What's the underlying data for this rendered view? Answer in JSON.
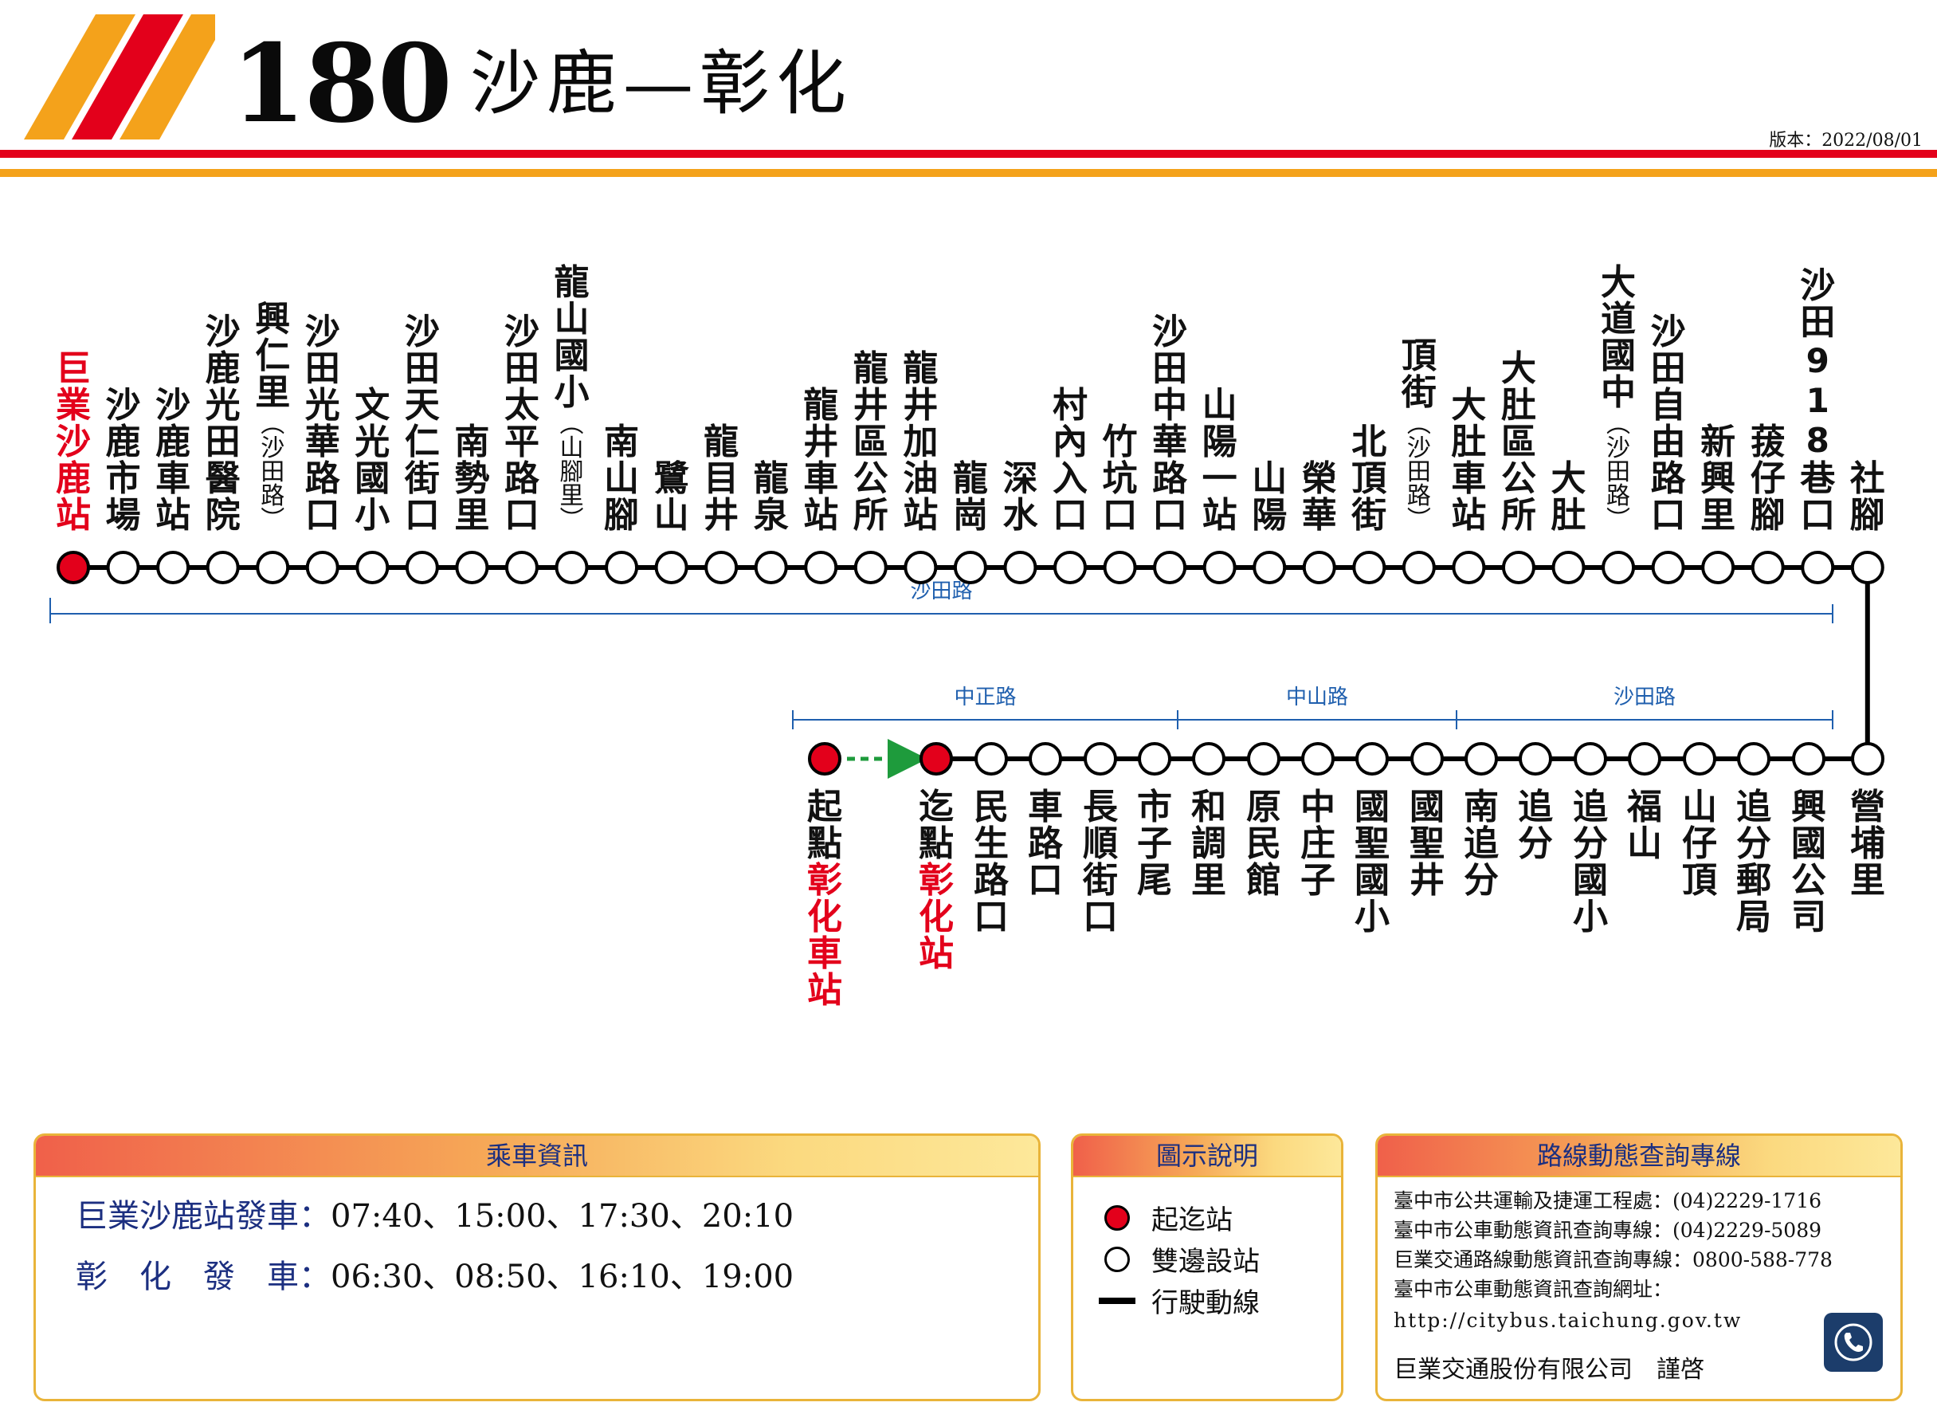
{
  "header": {
    "route_number": "180",
    "route_name": "沙鹿—彰化",
    "version": "版本：2022/08/01"
  },
  "colors": {
    "red": "#e3001b",
    "orange": "#f4a21b",
    "line": "#000000",
    "segment_blue": "#1f5fae",
    "arrow_green": "#1e9b3c",
    "label_navy": "#1c2f80"
  },
  "route": {
    "top_row": [
      {
        "name": "巨業沙鹿站",
        "type": "terminal"
      },
      {
        "name": "沙鹿市場",
        "type": "stop"
      },
      {
        "name": "沙鹿車站",
        "type": "stop"
      },
      {
        "name": "沙鹿光田醫院",
        "type": "stop"
      },
      {
        "name": "興仁里",
        "note": "沙田路",
        "type": "stop"
      },
      {
        "name": "沙田光華路口",
        "type": "stop"
      },
      {
        "name": "文光國小",
        "type": "stop"
      },
      {
        "name": "沙田天仁街口",
        "type": "stop"
      },
      {
        "name": "南勢里",
        "type": "stop"
      },
      {
        "name": "沙田太平路口",
        "type": "stop"
      },
      {
        "name": "龍山國小",
        "note": "山腳里",
        "type": "stop"
      },
      {
        "name": "南山腳",
        "type": "stop"
      },
      {
        "name": "鷺山",
        "type": "stop"
      },
      {
        "name": "龍目井",
        "type": "stop"
      },
      {
        "name": "龍泉",
        "type": "stop"
      },
      {
        "name": "龍井車站",
        "type": "stop"
      },
      {
        "name": "龍井區公所",
        "type": "stop"
      },
      {
        "name": "龍井加油站",
        "type": "stop"
      },
      {
        "name": "龍崗",
        "type": "stop"
      },
      {
        "name": "深水",
        "type": "stop"
      },
      {
        "name": "村內入口",
        "type": "stop"
      },
      {
        "name": "竹坑口",
        "type": "stop"
      },
      {
        "name": "沙田中華路口",
        "type": "stop"
      },
      {
        "name": "山陽一站",
        "type": "stop"
      },
      {
        "name": "山陽",
        "type": "stop"
      },
      {
        "name": "榮華",
        "type": "stop"
      },
      {
        "name": "北頂街",
        "type": "stop"
      },
      {
        "name": "頂街",
        "note": "沙田路",
        "type": "stop"
      },
      {
        "name": "大肚車站",
        "type": "stop"
      },
      {
        "name": "大肚區公所",
        "type": "stop"
      },
      {
        "name": "大肚",
        "type": "stop"
      },
      {
        "name": "大道國中",
        "note": "沙田路",
        "type": "stop"
      },
      {
        "name": "沙田自由路口",
        "type": "stop"
      },
      {
        "name": "新興里",
        "type": "stop"
      },
      {
        "name": "菝仔腳",
        "type": "stop"
      },
      {
        "name": "沙田918巷口",
        "type": "stop"
      },
      {
        "name": "社腳",
        "type": "stop"
      }
    ],
    "bottom_row": [
      {
        "prefix": "起點",
        "name": "彰化車站",
        "type": "terminal"
      },
      {
        "prefix": "迄點",
        "name": "彰化站",
        "type": "terminal"
      },
      {
        "name": "民生路口",
        "type": "stop"
      },
      {
        "name": "車路口",
        "type": "stop"
      },
      {
        "name": "長順街口",
        "type": "stop"
      },
      {
        "name": "市子尾",
        "type": "stop"
      },
      {
        "name": "和調里",
        "type": "stop"
      },
      {
        "name": "原民館",
        "type": "stop"
      },
      {
        "name": "中庄子",
        "type": "stop"
      },
      {
        "name": "國聖國小",
        "type": "stop"
      },
      {
        "name": "國聖井",
        "type": "stop"
      },
      {
        "name": "南追分",
        "type": "stop"
      },
      {
        "name": "追分",
        "type": "stop"
      },
      {
        "name": "追分國小",
        "type": "stop"
      },
      {
        "name": "福山",
        "type": "stop"
      },
      {
        "name": "山仔頂",
        "type": "stop"
      },
      {
        "name": "追分郵局",
        "type": "stop"
      },
      {
        "name": "興國公司",
        "type": "stop"
      },
      {
        "name": "營埔里",
        "type": "stop"
      }
    ],
    "segments": [
      {
        "label": "沙田路",
        "row": "top"
      },
      {
        "label": "中正路",
        "row": "bottom"
      },
      {
        "label": "中山路",
        "row": "bottom"
      },
      {
        "label": "沙田路",
        "row": "bottom"
      }
    ]
  },
  "schedule": {
    "title": "乘車資訊",
    "rows": [
      {
        "label": "巨業沙鹿站發車：",
        "times": "07:40、15:00、17:30、20:10"
      },
      {
        "label": "彰　化　發　車：",
        "times": "06:30、08:50、16:10、19:00"
      }
    ]
  },
  "legend": {
    "title": "圖示說明",
    "items": [
      {
        "icon": "red-filled-circle",
        "label": "起迄站"
      },
      {
        "icon": "white-circle",
        "label": "雙邊設站"
      },
      {
        "icon": "black-line",
        "label": "行駛動線"
      }
    ]
  },
  "hotline": {
    "title": "路線動態查詢專線",
    "lines": [
      "臺中市公共運輸及捷運工程處：(04)2229-1716",
      "臺中市公車動態資訊查詢專線：(04)2229-5089",
      "巨業交通路線動態資訊查詢專線：0800-588-778",
      "臺中市公車動態資訊查詢網址：",
      "http://citybus.taichung.gov.tw"
    ],
    "company": "巨業交通股份有限公司　謹啓",
    "icon": "phone-icon"
  }
}
